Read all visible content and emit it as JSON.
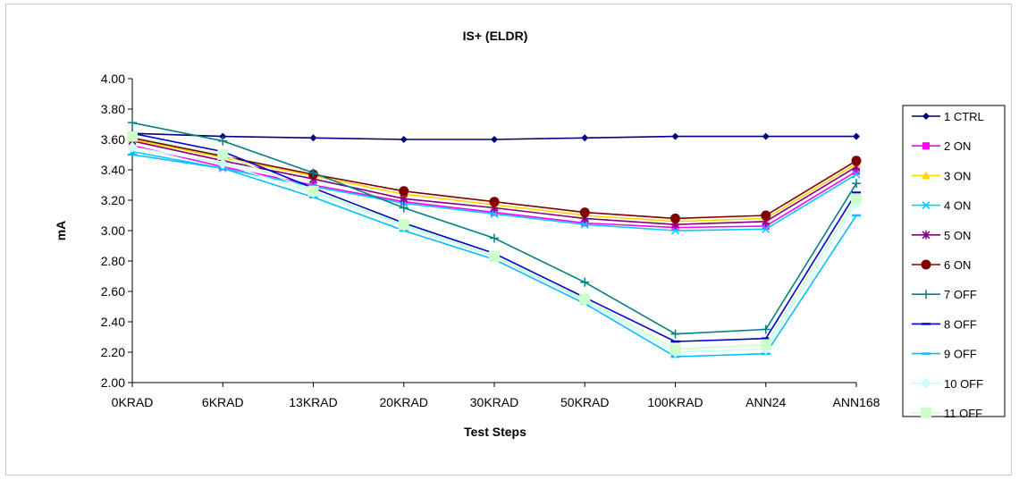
{
  "chart_data": {
    "type": "line",
    "title": "IS+ (ELDR)",
    "xlabel": "Test Steps",
    "ylabel": "mA",
    "categories": [
      "0KRAD",
      "6KRAD",
      "13KRAD",
      "20KRAD",
      "30KRAD",
      "50KRAD",
      "100KRAD",
      "ANN24",
      "ANN168"
    ],
    "ylim": [
      2.0,
      4.0
    ],
    "yticks": [
      "2.00",
      "2.20",
      "2.40",
      "2.60",
      "2.80",
      "3.00",
      "3.20",
      "3.40",
      "3.60",
      "3.80",
      "4.00"
    ],
    "grid": false,
    "legend_position": "right",
    "series": [
      {
        "name": "1 CTRL",
        "color": "#000080",
        "marker": "diamond",
        "values": [
          3.64,
          3.62,
          3.61,
          3.6,
          3.6,
          3.61,
          3.62,
          3.62,
          3.62
        ]
      },
      {
        "name": "2 ON",
        "color": "#FF00FF",
        "marker": "square",
        "values": [
          3.56,
          3.42,
          3.3,
          3.19,
          3.12,
          3.05,
          3.02,
          3.03,
          3.39
        ]
      },
      {
        "name": "3 ON",
        "color": "#FFD700",
        "marker": "triangle",
        "values": [
          3.6,
          3.48,
          3.36,
          3.24,
          3.17,
          3.1,
          3.06,
          3.08,
          3.44
        ]
      },
      {
        "name": "4 ON",
        "color": "#00CCFF",
        "marker": "x",
        "values": [
          3.52,
          3.41,
          3.29,
          3.18,
          3.11,
          3.04,
          3.0,
          3.01,
          3.37
        ]
      },
      {
        "name": "5 ON",
        "color": "#800080",
        "marker": "star",
        "values": [
          3.59,
          3.46,
          3.34,
          3.21,
          3.15,
          3.08,
          3.04,
          3.06,
          3.42
        ]
      },
      {
        "name": "6 ON",
        "color": "#800000",
        "marker": "circle",
        "values": [
          3.61,
          3.49,
          3.37,
          3.26,
          3.19,
          3.12,
          3.08,
          3.1,
          3.46
        ]
      },
      {
        "name": "7 OFF",
        "color": "#008080",
        "marker": "plus",
        "values": [
          3.71,
          3.59,
          3.38,
          3.15,
          2.95,
          2.66,
          2.32,
          2.35,
          3.31
        ]
      },
      {
        "name": "8 OFF",
        "color": "#0000CC",
        "marker": "dash",
        "values": [
          3.64,
          3.52,
          3.28,
          3.05,
          2.85,
          2.56,
          2.27,
          2.29,
          3.25
        ]
      },
      {
        "name": "9 OFF",
        "color": "#00BFFF",
        "marker": "dash",
        "values": [
          3.5,
          3.41,
          3.22,
          3.0,
          2.81,
          2.52,
          2.17,
          2.19,
          3.1
        ]
      },
      {
        "name": "10 OFF",
        "color": "#CCFFFF",
        "marker": "bigdiamond",
        "values": [
          3.55,
          3.44,
          3.25,
          3.03,
          2.83,
          2.54,
          2.2,
          2.22,
          3.18
        ]
      },
      {
        "name": "11 OFF",
        "color": "#CCFFCC",
        "marker": "bigsquare",
        "values": [
          3.62,
          3.5,
          3.26,
          3.04,
          2.83,
          2.55,
          2.22,
          2.25,
          3.21
        ]
      }
    ]
  }
}
